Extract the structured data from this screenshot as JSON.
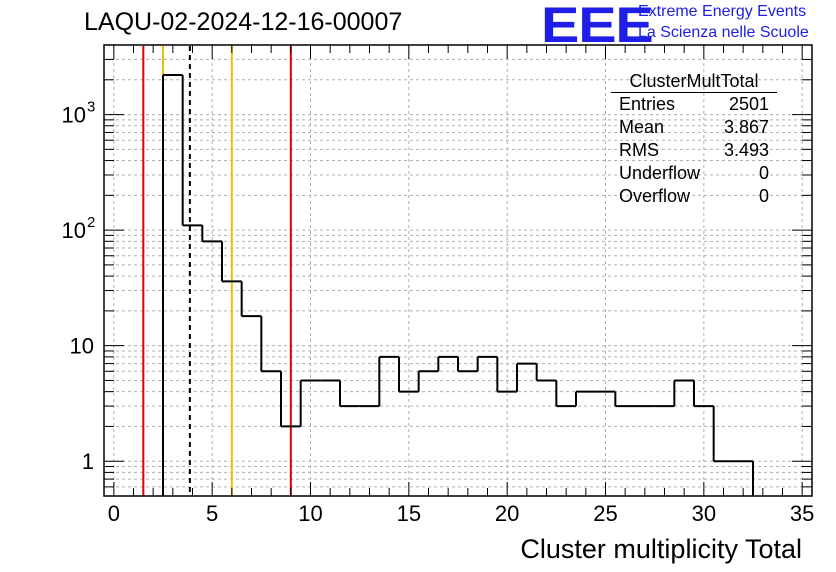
{
  "header": {
    "title": "LAQU-02-2024-12-16-00007"
  },
  "logo": {
    "mark": "EEE",
    "line1": "Extreme Energy Events",
    "line2": "La Scienza nelle Scuole",
    "color": "#1e1ee6"
  },
  "stats_box": {
    "title": "ClusterMultTotal",
    "rows": [
      {
        "label": "Entries",
        "value": "2501"
      },
      {
        "label": "Mean",
        "value": "3.867"
      },
      {
        "label": "RMS",
        "value": "3.493"
      },
      {
        "label": "Underflow",
        "value": "0"
      },
      {
        "label": "Overflow",
        "value": "0"
      }
    ]
  },
  "chart_data": {
    "type": "bar",
    "style": "step-histogram",
    "title": "LAQU-02-2024-12-16-00007",
    "xlabel": "Cluster multiplicity Total",
    "ylabel": "",
    "xlim": [
      -0.5,
      35.5
    ],
    "ylim": [
      0.5,
      4000
    ],
    "yscale": "log",
    "grid": true,
    "bins": [
      {
        "x": 3,
        "value": 2200
      },
      {
        "x": 4,
        "value": 110
      },
      {
        "x": 5,
        "value": 80
      },
      {
        "x": 6,
        "value": 36
      },
      {
        "x": 7,
        "value": 18
      },
      {
        "x": 8,
        "value": 6
      },
      {
        "x": 9,
        "value": 2
      },
      {
        "x": 10,
        "value": 5
      },
      {
        "x": 11,
        "value": 5
      },
      {
        "x": 12,
        "value": 3
      },
      {
        "x": 13,
        "value": 3
      },
      {
        "x": 14,
        "value": 8
      },
      {
        "x": 15,
        "value": 4
      },
      {
        "x": 16,
        "value": 6
      },
      {
        "x": 17,
        "value": 8
      },
      {
        "x": 18,
        "value": 6
      },
      {
        "x": 19,
        "value": 8
      },
      {
        "x": 20,
        "value": 4
      },
      {
        "x": 21,
        "value": 7
      },
      {
        "x": 22,
        "value": 5
      },
      {
        "x": 23,
        "value": 3
      },
      {
        "x": 24,
        "value": 4
      },
      {
        "x": 25,
        "value": 4
      },
      {
        "x": 26,
        "value": 3
      },
      {
        "x": 27,
        "value": 3
      },
      {
        "x": 28,
        "value": 3
      },
      {
        "x": 29,
        "value": 5
      },
      {
        "x": 30,
        "value": 3
      },
      {
        "x": 31,
        "value": 1
      },
      {
        "x": 32,
        "value": 1
      }
    ],
    "x_ticks": [
      "0",
      "5",
      "10",
      "15",
      "20",
      "25",
      "30",
      "35"
    ],
    "y_tick_labels": [
      {
        "value": 1,
        "label": "1",
        "sup": ""
      },
      {
        "value": 10,
        "label": "10",
        "sup": ""
      },
      {
        "value": 100,
        "label": "10",
        "sup": "2"
      },
      {
        "value": 1000,
        "label": "10",
        "sup": "3"
      }
    ],
    "vertical_lines": [
      {
        "x": 1.5,
        "color": "#e00000"
      },
      {
        "x": 2.5,
        "color": "#f0c000"
      },
      {
        "x": 3.867,
        "color": "#000000",
        "dashed": true
      },
      {
        "x": 6.0,
        "color": "#f0c000"
      },
      {
        "x": 9.0,
        "color": "#e00000"
      }
    ]
  }
}
